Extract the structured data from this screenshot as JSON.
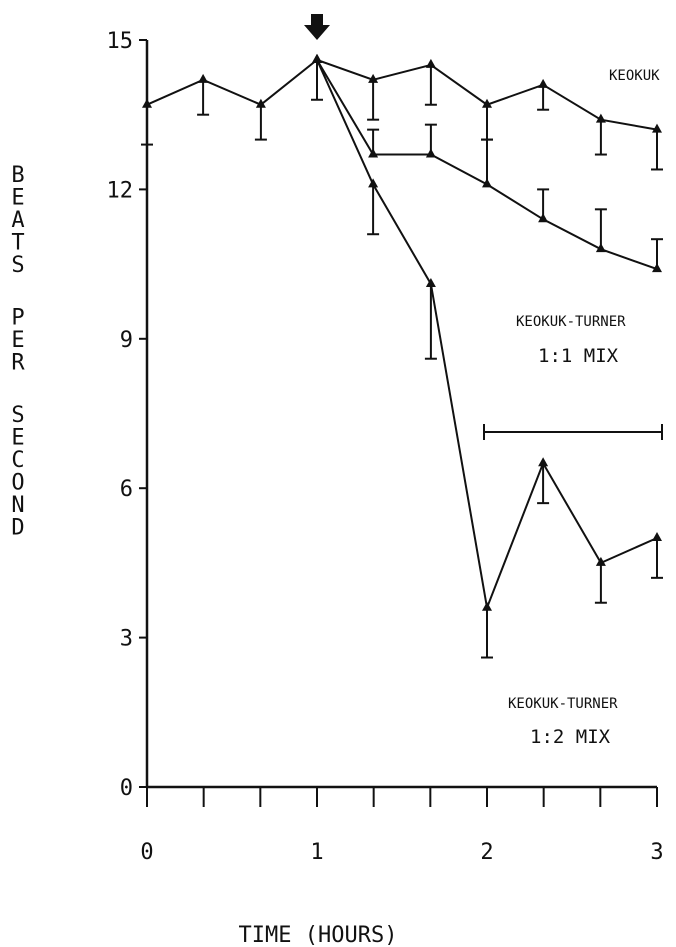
{
  "chart_data": {
    "type": "line",
    "title": "",
    "xlabel": "TIME (HOURS)",
    "ylabel": "BEATS PER SECOND",
    "xlim": [
      0,
      3
    ],
    "ylim": [
      0,
      15
    ],
    "x_ticks": [
      0,
      1,
      2,
      3
    ],
    "x_tick_labels": [
      "0",
      "1",
      "2",
      "3"
    ],
    "y_ticks": [
      0,
      3,
      6,
      9,
      12,
      15
    ],
    "y_tick_labels": [
      "0",
      "3",
      "6",
      "9",
      "12",
      "15"
    ],
    "grid": false,
    "legend": "none; series labeled inline",
    "series": [
      {
        "name": "KEOKUK",
        "x": [
          0,
          0.33,
          0.67,
          1.0,
          1.33,
          1.67,
          2.0,
          2.33,
          2.67,
          3.0
        ],
        "y": [
          13.7,
          14.2,
          13.7,
          14.6,
          14.2,
          14.5,
          13.7,
          14.1,
          13.4,
          13.2
        ],
        "err_low": [
          12.9,
          13.5,
          13.0,
          13.8,
          13.4,
          13.7,
          13.0,
          13.6,
          12.7,
          12.4
        ]
      },
      {
        "name": "KEOKUK-TURNER 1:1 MIX",
        "x": [
          1.0,
          1.33,
          1.67,
          2.0,
          2.33,
          2.67,
          3.0
        ],
        "y": [
          14.6,
          12.7,
          12.7,
          12.1,
          11.4,
          10.8,
          10.4
        ],
        "err_high": [
          null,
          13.2,
          13.3,
          13.0,
          12.0,
          11.6,
          11.0
        ]
      },
      {
        "name": "KEOKUK-TURNER 1:2 MIX",
        "x": [
          1.0,
          1.33,
          1.67,
          2.0,
          2.33,
          2.67,
          3.0
        ],
        "y": [
          14.6,
          12.1,
          10.1,
          3.6,
          6.5,
          4.5,
          5.0
        ],
        "err_low": [
          null,
          11.1,
          8.6,
          2.6,
          5.7,
          3.7,
          4.2
        ]
      }
    ],
    "annotations": [
      {
        "type": "arrow",
        "x": 1.0,
        "label": ""
      },
      {
        "type": "bracket",
        "x_start": 2.0,
        "x_end": 3.0,
        "y": 7.0,
        "label": ""
      }
    ],
    "labels": {
      "keokuk": "KEOKUK",
      "mix11_l1": "KEOKUK-TURNER",
      "mix11_l2": "1:1 MIX",
      "mix12_l1": "KEOKUK-TURNER",
      "mix12_l2": "1:2 MIX"
    }
  }
}
